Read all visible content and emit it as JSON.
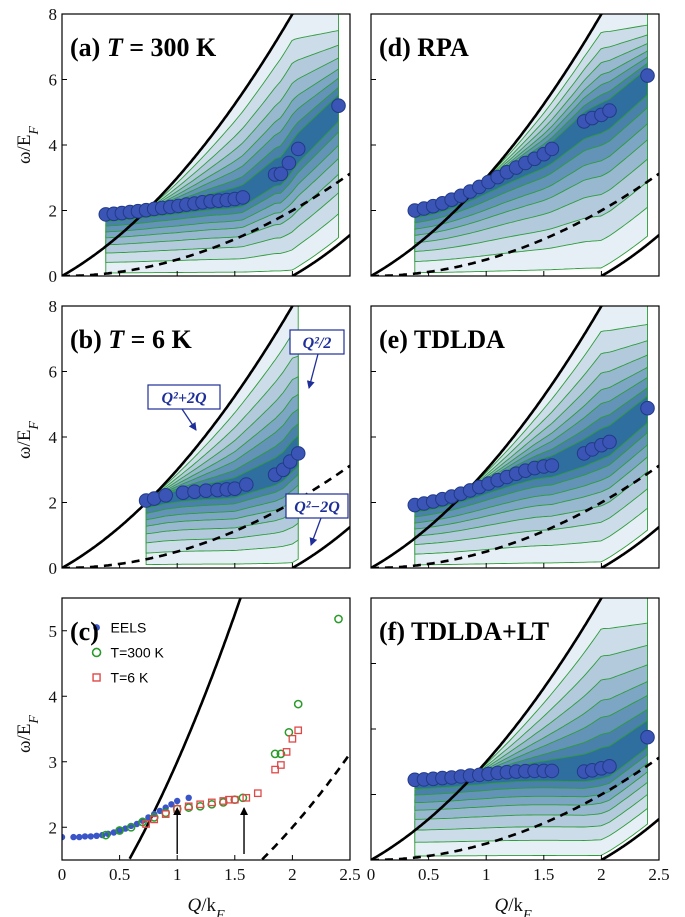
{
  "figure": {
    "x_axis_label": "Q/k_F",
    "y_axis_label": "ω/E_F"
  },
  "colors": {
    "map_light": "#e6eff5",
    "map_dark": "#2f6f9f",
    "contour": "#2e9c3a",
    "circle_fill": "#3a55b5",
    "circle_edge": "#223a88",
    "green_open": "#2a9a2a",
    "red_open": "#e04848",
    "eels_dot": "#3a55c8",
    "annotation": "#1f2f99"
  },
  "curves": {
    "solid_left": "Q²+2Q",
    "dashed": "Q²/2",
    "solid_right": "Q²−2Q"
  },
  "chart_data": [
    {
      "id": "a",
      "type": "heatmap",
      "title": "(a) T = 300 K",
      "xlim": [
        0,
        2.5
      ],
      "ylim": [
        0,
        8
      ],
      "xticks": [],
      "yticks": [
        0,
        2,
        4,
        6,
        8
      ],
      "map_x_range": [
        0.38,
        2.4
      ],
      "peaks": [
        [
          0.38,
          1.88
        ],
        [
          0.45,
          1.9
        ],
        [
          0.52,
          1.92
        ],
        [
          0.59,
          1.95
        ],
        [
          0.66,
          1.98
        ],
        [
          0.73,
          2.01
        ],
        [
          0.8,
          2.05
        ],
        [
          0.87,
          2.08
        ],
        [
          0.94,
          2.11
        ],
        [
          1.01,
          2.14
        ],
        [
          1.08,
          2.18
        ],
        [
          1.15,
          2.21
        ],
        [
          1.22,
          2.25
        ],
        [
          1.29,
          2.28
        ],
        [
          1.36,
          2.3
        ],
        [
          1.43,
          2.32
        ],
        [
          1.5,
          2.35
        ],
        [
          1.57,
          2.4
        ],
        [
          1.85,
          3.1
        ],
        [
          1.9,
          3.12
        ],
        [
          1.97,
          3.45
        ],
        [
          2.05,
          3.88
        ],
        [
          2.4,
          5.2
        ]
      ]
    },
    {
      "id": "d",
      "type": "heatmap",
      "title": "(d) RPA",
      "xlim": [
        0,
        2.5
      ],
      "ylim": [
        0,
        8
      ],
      "xticks": [],
      "yticks": [],
      "map_x_range": [
        0.38,
        2.4
      ],
      "peaks": [
        [
          0.38,
          2.0
        ],
        [
          0.46,
          2.06
        ],
        [
          0.54,
          2.13
        ],
        [
          0.62,
          2.22
        ],
        [
          0.7,
          2.33
        ],
        [
          0.78,
          2.45
        ],
        [
          0.86,
          2.58
        ],
        [
          0.94,
          2.72
        ],
        [
          1.02,
          2.87
        ],
        [
          1.1,
          3.02
        ],
        [
          1.18,
          3.17
        ],
        [
          1.26,
          3.31
        ],
        [
          1.34,
          3.45
        ],
        [
          1.42,
          3.58
        ],
        [
          1.5,
          3.72
        ],
        [
          1.57,
          3.88
        ],
        [
          1.85,
          4.72
        ],
        [
          1.92,
          4.82
        ],
        [
          2.0,
          4.92
        ],
        [
          2.07,
          5.05
        ],
        [
          2.4,
          6.12
        ]
      ]
    },
    {
      "id": "b",
      "type": "heatmap",
      "title": "(b) T = 6 K",
      "xlim": [
        0,
        2.5
      ],
      "ylim": [
        0,
        8
      ],
      "xticks": [],
      "yticks": [
        0,
        2,
        4,
        6,
        8
      ],
      "map_x_range": [
        0.73,
        2.05
      ],
      "annotations": [
        "Q²+2Q",
        "Q²/2",
        "Q²−2Q"
      ],
      "peaks": [
        [
          0.73,
          2.06
        ],
        [
          0.8,
          2.12
        ],
        [
          0.9,
          2.22
        ],
        [
          1.05,
          2.3
        ],
        [
          1.15,
          2.33
        ],
        [
          1.25,
          2.36
        ],
        [
          1.35,
          2.38
        ],
        [
          1.43,
          2.4
        ],
        [
          1.5,
          2.42
        ],
        [
          1.6,
          2.55
        ],
        [
          1.85,
          2.85
        ],
        [
          1.92,
          3.0
        ],
        [
          1.98,
          3.25
        ],
        [
          2.05,
          3.5
        ]
      ]
    },
    {
      "id": "e",
      "type": "heatmap",
      "title": "(e) TDLDA",
      "xlim": [
        0,
        2.5
      ],
      "ylim": [
        0,
        8
      ],
      "xticks": [],
      "yticks": [],
      "map_x_range": [
        0.38,
        2.4
      ],
      "peaks": [
        [
          0.38,
          1.92
        ],
        [
          0.46,
          1.97
        ],
        [
          0.54,
          2.03
        ],
        [
          0.62,
          2.1
        ],
        [
          0.7,
          2.18
        ],
        [
          0.78,
          2.27
        ],
        [
          0.86,
          2.37
        ],
        [
          0.94,
          2.47
        ],
        [
          1.02,
          2.58
        ],
        [
          1.1,
          2.68
        ],
        [
          1.18,
          2.78
        ],
        [
          1.26,
          2.88
        ],
        [
          1.34,
          2.97
        ],
        [
          1.42,
          3.05
        ],
        [
          1.5,
          3.1
        ],
        [
          1.57,
          3.13
        ],
        [
          1.85,
          3.5
        ],
        [
          1.92,
          3.62
        ],
        [
          2.0,
          3.75
        ],
        [
          2.07,
          3.85
        ],
        [
          2.4,
          4.88
        ]
      ]
    },
    {
      "id": "c",
      "type": "scatter",
      "title": "(c)",
      "xlim": [
        0,
        2.5
      ],
      "ylim": [
        1.5,
        5.5
      ],
      "xticks": [
        0,
        0.5,
        1,
        1.5,
        2,
        2.5
      ],
      "yticks": [
        2,
        3,
        4,
        5
      ],
      "arrows_x": [
        1.0,
        1.58
      ],
      "series": [
        {
          "name": "EELS",
          "marker": "filled-dot",
          "points": [
            [
              0.0,
              1.85
            ],
            [
              0.1,
              1.85
            ],
            [
              0.15,
              1.85
            ],
            [
              0.2,
              1.86
            ],
            [
              0.25,
              1.86
            ],
            [
              0.3,
              1.87
            ],
            [
              0.35,
              1.88
            ],
            [
              0.4,
              1.9
            ],
            [
              0.45,
              1.92
            ],
            [
              0.5,
              1.95
            ],
            [
              0.55,
              1.98
            ],
            [
              0.6,
              2.02
            ],
            [
              0.65,
              2.05
            ],
            [
              0.7,
              2.1
            ],
            [
              0.75,
              2.15
            ],
            [
              0.8,
              2.2
            ],
            [
              0.85,
              2.25
            ],
            [
              0.9,
              2.3
            ],
            [
              0.95,
              2.35
            ],
            [
              1.0,
              2.4
            ],
            [
              1.1,
              2.45
            ]
          ]
        },
        {
          "name": "T=300 K",
          "marker": "open-circle",
          "points": [
            [
              0.38,
              1.88
            ],
            [
              0.5,
              1.95
            ],
            [
              0.6,
              2.0
            ],
            [
              0.7,
              2.08
            ],
            [
              0.8,
              2.15
            ],
            [
              0.9,
              2.22
            ],
            [
              1.0,
              2.28
            ],
            [
              1.1,
              2.3
            ],
            [
              1.2,
              2.32
            ],
            [
              1.3,
              2.35
            ],
            [
              1.4,
              2.38
            ],
            [
              1.5,
              2.42
            ],
            [
              1.57,
              2.45
            ],
            [
              1.85,
              3.12
            ],
            [
              1.9,
              3.12
            ],
            [
              1.97,
              3.45
            ],
            [
              2.05,
              3.88
            ],
            [
              2.4,
              5.18
            ]
          ]
        },
        {
          "name": "T=6 K",
          "marker": "open-square",
          "points": [
            [
              0.73,
              2.05
            ],
            [
              0.8,
              2.12
            ],
            [
              0.9,
              2.2
            ],
            [
              1.0,
              2.28
            ],
            [
              1.1,
              2.32
            ],
            [
              1.2,
              2.35
            ],
            [
              1.3,
              2.38
            ],
            [
              1.4,
              2.4
            ],
            [
              1.45,
              2.42
            ],
            [
              1.5,
              2.42
            ],
            [
              1.6,
              2.45
            ],
            [
              1.7,
              2.52
            ],
            [
              1.85,
              2.88
            ],
            [
              1.9,
              2.95
            ],
            [
              1.95,
              3.15
            ],
            [
              2.0,
              3.35
            ],
            [
              2.05,
              3.48
            ]
          ]
        }
      ]
    },
    {
      "id": "f",
      "type": "heatmap",
      "title": "(f) TDLDA+LT",
      "xlim": [
        0,
        2.5
      ],
      "ylim": [
        0,
        8
      ],
      "xticks": [
        0,
        0.5,
        1,
        1.5,
        2,
        2.5
      ],
      "yticks": [],
      "map_x_range": [
        0.38,
        2.4
      ],
      "peaks": [
        [
          0.38,
          2.45
        ],
        [
          0.46,
          2.46
        ],
        [
          0.54,
          2.48
        ],
        [
          0.62,
          2.5
        ],
        [
          0.7,
          2.52
        ],
        [
          0.78,
          2.55
        ],
        [
          0.86,
          2.58
        ],
        [
          0.94,
          2.6
        ],
        [
          1.02,
          2.63
        ],
        [
          1.1,
          2.66
        ],
        [
          1.18,
          2.68
        ],
        [
          1.26,
          2.7
        ],
        [
          1.34,
          2.71
        ],
        [
          1.42,
          2.72
        ],
        [
          1.5,
          2.72
        ],
        [
          1.57,
          2.72
        ],
        [
          1.85,
          2.7
        ],
        [
          1.92,
          2.74
        ],
        [
          2.0,
          2.8
        ],
        [
          2.07,
          2.86
        ],
        [
          2.4,
          3.75
        ]
      ]
    }
  ]
}
